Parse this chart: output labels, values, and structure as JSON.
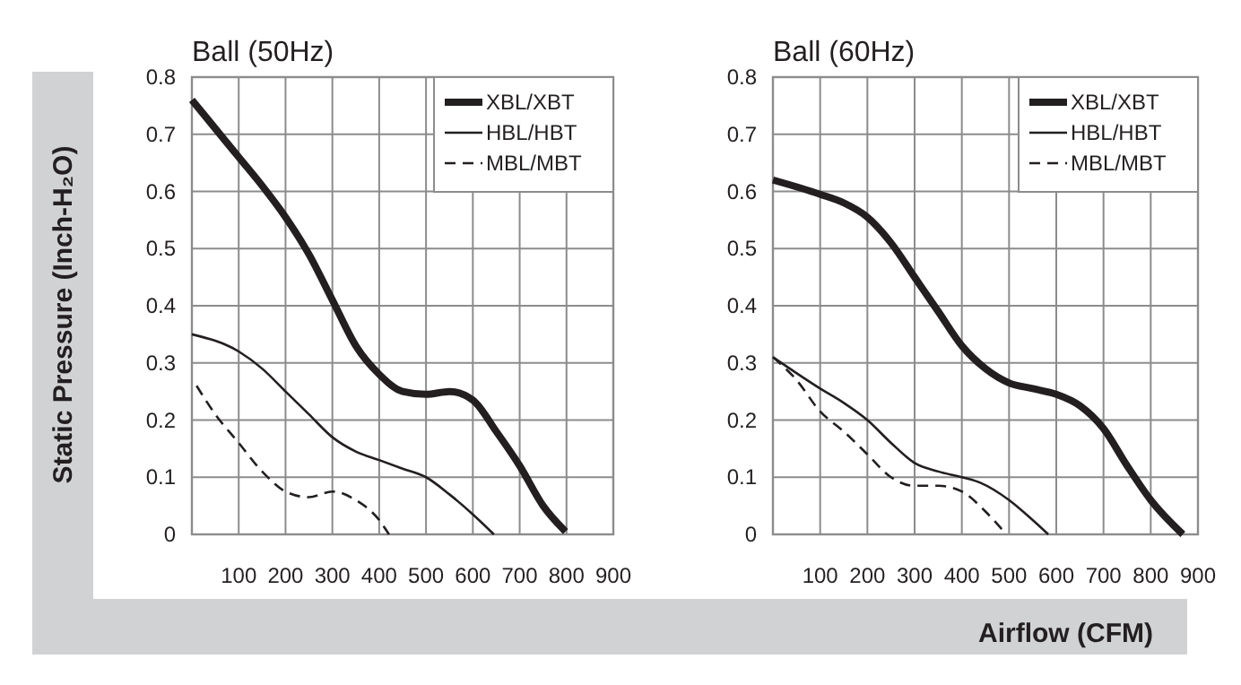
{
  "chart_data": [
    {
      "type": "line",
      "title": "Ball (50Hz)",
      "ylabel": "Static Pressure (Inch-H₂O)",
      "xlim": [
        0,
        900
      ],
      "xticks": [
        100,
        200,
        300,
        400,
        500,
        600,
        700,
        800,
        900
      ],
      "ylim": [
        0,
        0.8
      ],
      "yticks": [
        0,
        0.1,
        0.2,
        0.3,
        0.4,
        0.5,
        0.6,
        0.7,
        0.8
      ],
      "grid": true,
      "legend": "top right",
      "series": [
        {
          "name": "XBL/XBT",
          "color": "#231f20",
          "line_style": "solid",
          "x": [
            0,
            50,
            100,
            150,
            200,
            250,
            300,
            350,
            400,
            450,
            500,
            550,
            600,
            650,
            700,
            750,
            798
          ],
          "values": [
            0.76,
            0.71,
            0.66,
            0.61,
            0.555,
            0.49,
            0.41,
            0.33,
            0.28,
            0.25,
            0.245,
            0.25,
            0.235,
            0.18,
            0.12,
            0.05,
            0.005
          ]
        },
        {
          "name": "HBL/HBT",
          "color": "#231f20",
          "line_style": "solid",
          "x": [
            0,
            100,
            150,
            200,
            250,
            300,
            350,
            400,
            450,
            500,
            550,
            600,
            645
          ],
          "values": [
            0.35,
            0.32,
            0.29,
            0.25,
            0.21,
            0.17,
            0.145,
            0.13,
            0.115,
            0.1,
            0.07,
            0.035,
            0
          ]
        },
        {
          "name": "MBL/MBT",
          "color": "#231f20",
          "line_style": "dashed",
          "x": [
            10,
            50,
            100,
            150,
            200,
            250,
            300,
            350,
            400,
            421
          ],
          "values": [
            0.26,
            0.21,
            0.16,
            0.11,
            0.075,
            0.065,
            0.075,
            0.06,
            0.025,
            0
          ]
        }
      ]
    },
    {
      "type": "line",
      "title": "Ball (60Hz)",
      "xlabel": "Airflow (CFM)",
      "xlim": [
        0,
        900
      ],
      "xticks": [
        100,
        200,
        300,
        400,
        500,
        600,
        700,
        800,
        900
      ],
      "ylim": [
        0,
        0.8
      ],
      "yticks": [
        0,
        0.1,
        0.2,
        0.3,
        0.4,
        0.5,
        0.6,
        0.7,
        0.8
      ],
      "grid": true,
      "legend": "top right",
      "series": [
        {
          "name": "XBL/XBT",
          "color": "#231f20",
          "line_style": "solid",
          "x": [
            0,
            100,
            150,
            200,
            250,
            300,
            350,
            400,
            450,
            500,
            550,
            600,
            650,
            700,
            750,
            800,
            868
          ],
          "values": [
            0.62,
            0.595,
            0.58,
            0.555,
            0.51,
            0.45,
            0.39,
            0.33,
            0.29,
            0.265,
            0.255,
            0.245,
            0.225,
            0.185,
            0.12,
            0.06,
            0
          ]
        },
        {
          "name": "HBL/HBT",
          "color": "#231f20",
          "line_style": "solid",
          "x": [
            0,
            100,
            150,
            200,
            250,
            300,
            350,
            400,
            440,
            500,
            550,
            583
          ],
          "values": [
            0.31,
            0.255,
            0.23,
            0.2,
            0.16,
            0.125,
            0.11,
            0.1,
            0.09,
            0.06,
            0.025,
            0
          ]
        },
        {
          "name": "MBL/MBT",
          "color": "#231f20",
          "line_style": "dashed",
          "x": [
            0,
            50,
            100,
            150,
            200,
            250,
            300,
            350,
            400,
            450,
            494
          ],
          "values": [
            0.31,
            0.27,
            0.215,
            0.18,
            0.14,
            0.1,
            0.085,
            0.085,
            0.075,
            0.04,
            0
          ]
        }
      ]
    }
  ]
}
